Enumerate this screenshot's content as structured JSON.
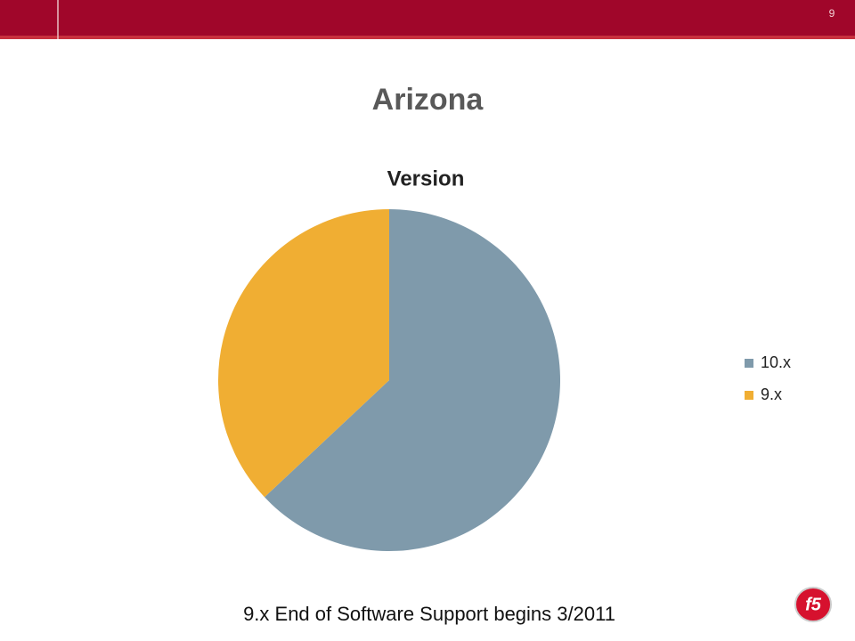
{
  "slide_number": "9",
  "title": "Arizona",
  "chart_data": {
    "type": "pie",
    "title": "Version",
    "categories": [
      "10.x",
      "9.x"
    ],
    "values": [
      63,
      37
    ],
    "colors": [
      "#7f9aab",
      "#f0ae33"
    ],
    "legend": "right"
  },
  "footer": "9.x End of Software Support begins 3/2011",
  "logo": "f5"
}
